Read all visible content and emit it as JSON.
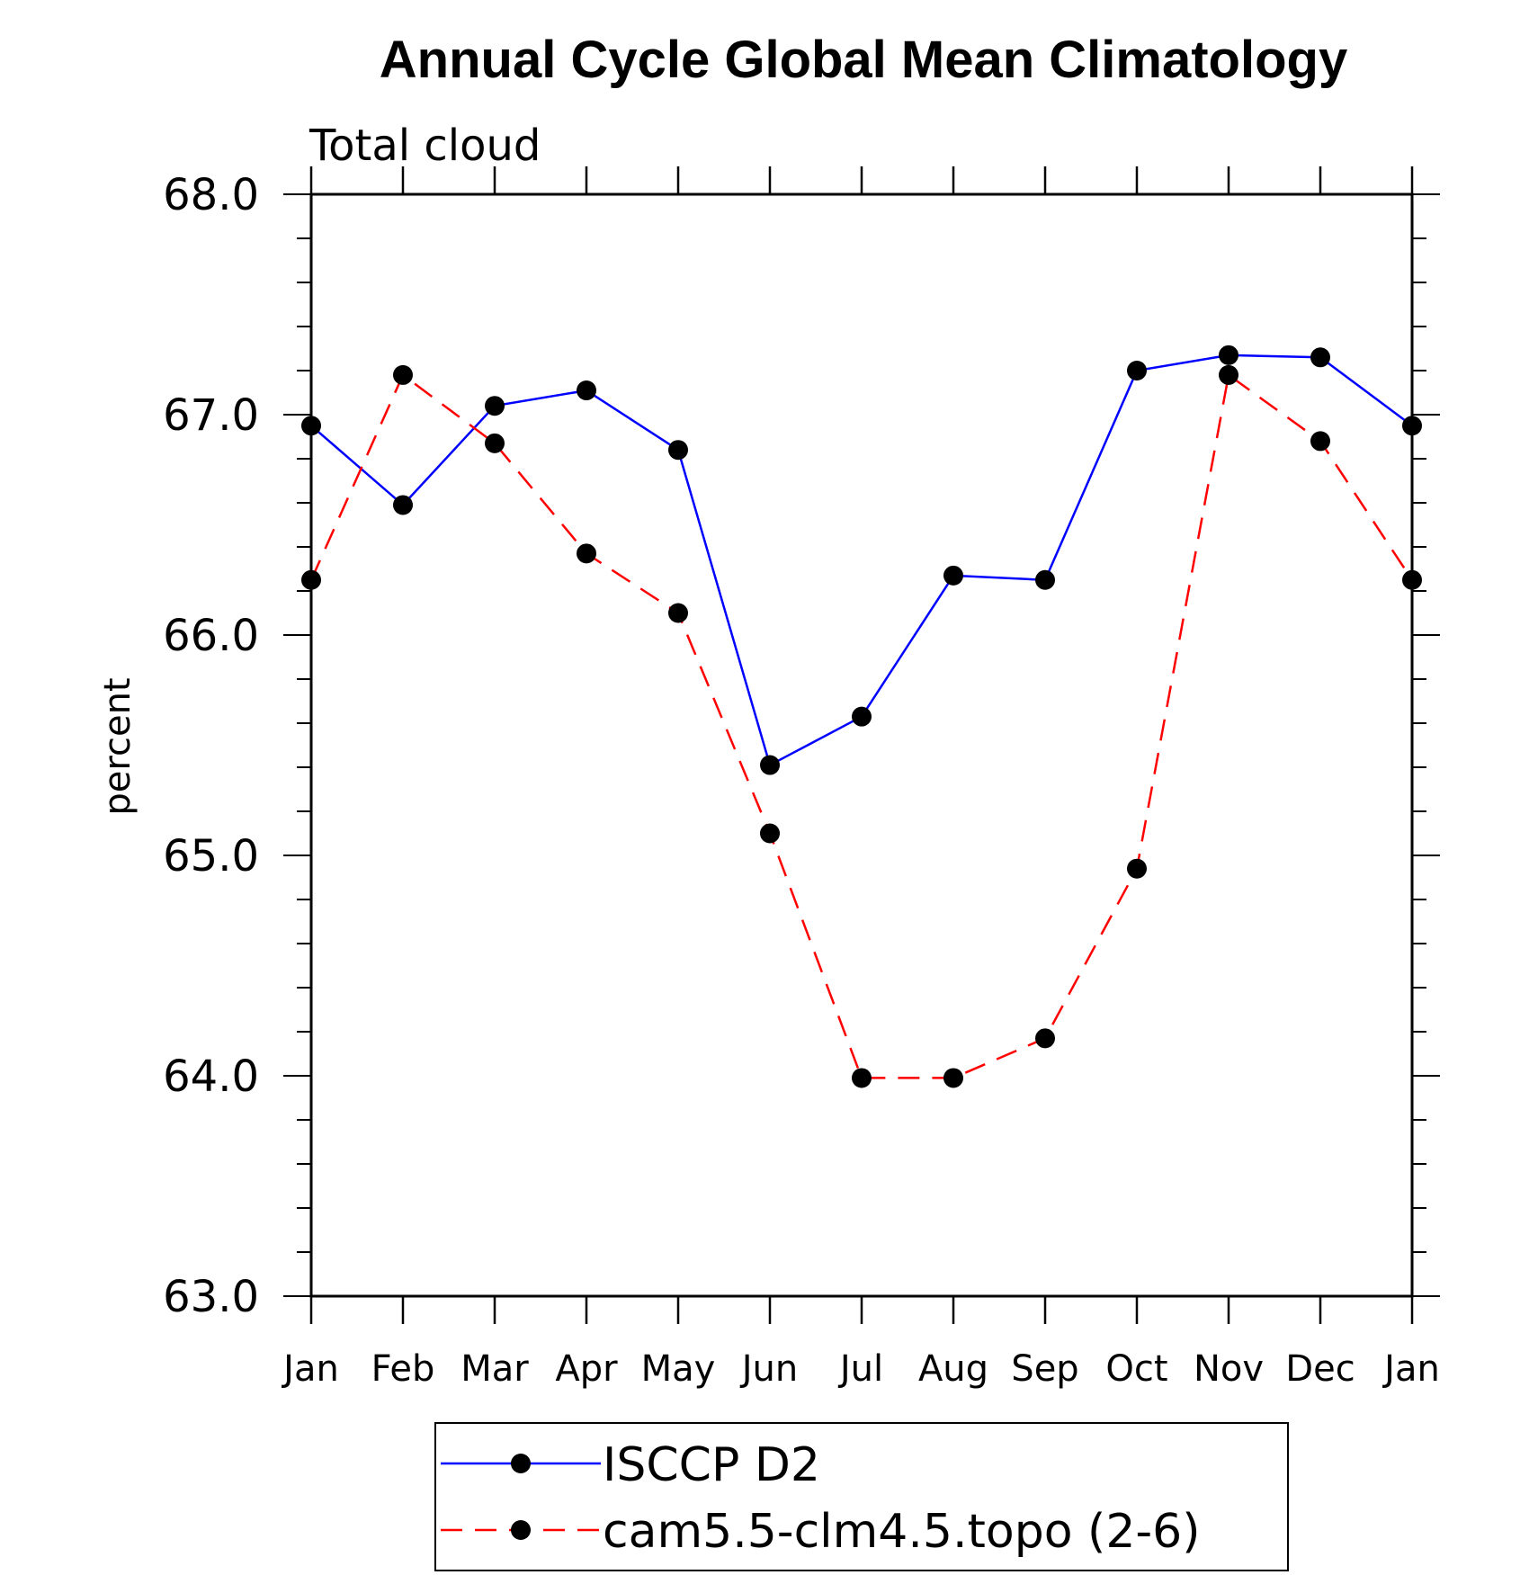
{
  "chart_data": {
    "type": "line",
    "title": "Annual Cycle Global Mean Climatology",
    "subtitle": "Total cloud",
    "xlabel": "",
    "ylabel": "percent",
    "ylim": [
      63.0,
      68.0
    ],
    "yticks": [
      "63.0",
      "64.0",
      "65.0",
      "66.0",
      "67.0",
      "68.0"
    ],
    "categories": [
      "Jan",
      "Feb",
      "Mar",
      "Apr",
      "May",
      "Jun",
      "Jul",
      "Aug",
      "Sep",
      "Oct",
      "Nov",
      "Dec",
      "Jan"
    ],
    "grid": false,
    "legend_position": "bottom",
    "series": [
      {
        "name": "ISCCP D2",
        "color": "#0000ff",
        "dash": "solid",
        "values": [
          66.95,
          66.59,
          67.04,
          67.11,
          66.84,
          65.41,
          65.63,
          66.27,
          66.25,
          67.2,
          67.27,
          67.26,
          66.95
        ]
      },
      {
        "name": "cam5.5-clm4.5.topo (2-6)",
        "color": "#ff0000",
        "dash": "dashed",
        "values": [
          66.25,
          67.18,
          66.87,
          66.37,
          66.1,
          65.1,
          63.99,
          63.99,
          64.17,
          64.94,
          67.18,
          66.88,
          66.25
        ]
      }
    ]
  }
}
